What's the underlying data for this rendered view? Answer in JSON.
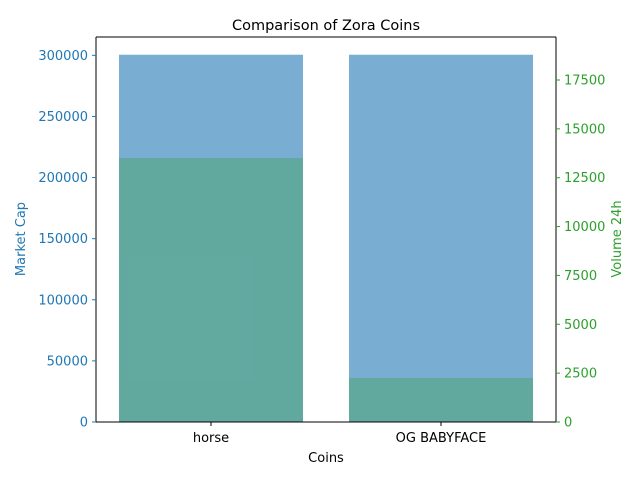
{
  "chart_data": {
    "type": "bar",
    "title": "Comparison of Zora Coins",
    "xlabel": "Coins",
    "categories": [
      "horse",
      "OG BABYFACE"
    ],
    "series": [
      {
        "name": "Market Cap",
        "axis": "left",
        "values": [
          300500,
          300500
        ],
        "color": "#1f77b4",
        "opacity": 0.6
      },
      {
        "name": "Volume 24h",
        "axis": "right",
        "values": [
          13500,
          2250
        ],
        "color": "#2ca02c",
        "opacity": 0.3
      }
    ],
    "left_axis": {
      "label": "Market Cap",
      "color": "#1f77b4",
      "ylim": [
        0,
        315000
      ],
      "ticks": [
        0,
        50000,
        100000,
        150000,
        200000,
        250000,
        300000
      ]
    },
    "right_axis": {
      "label": "Volume 24h",
      "color": "#2ca02c",
      "ylim": [
        0,
        19700
      ],
      "ticks": [
        0,
        2500,
        5000,
        7500,
        10000,
        12500,
        15000,
        17500
      ]
    },
    "grid": false,
    "legend": "none"
  }
}
